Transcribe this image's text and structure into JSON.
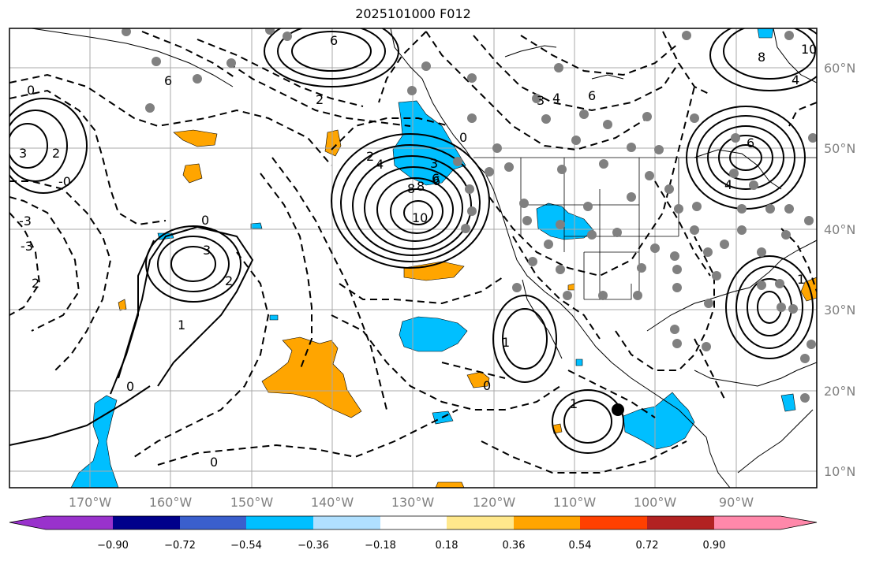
{
  "title": "2025101000 F012",
  "lat_labels": [
    "60°N",
    "50°N",
    "40°N",
    "30°N",
    "20°N",
    "10°N"
  ],
  "lon_labels": [
    "170°W",
    "160°W",
    "150°W",
    "140°W",
    "130°W",
    "120°W",
    "110°W",
    "100°W",
    "90°W"
  ],
  "colorbar": {
    "ticks": [
      "−0.90",
      "−0.72",
      "−0.54",
      "−0.36",
      "−0.18",
      "0.18",
      "0.36",
      "0.54",
      "0.72",
      "0.90"
    ],
    "colors": [
      "#9932cc",
      "#00008b",
      "#3a5fcd",
      "#00bfff",
      "#b0e0ff",
      "#ffffff",
      "#ffe88c",
      "#ffa500",
      "#ff4000",
      "#b22222",
      "#ff88aa"
    ]
  },
  "contour_labels": [
    "6",
    "8",
    "6",
    "4",
    "2",
    "0",
    "3",
    "2",
    "-3",
    "-0",
    "2",
    "0",
    "3",
    "2",
    "1",
    "0",
    "3",
    "6",
    "8",
    "10",
    "0",
    "2",
    "6",
    "3",
    "4",
    "6",
    "8",
    "10",
    "4",
    "6",
    "4",
    "1",
    "0",
    "1",
    "1",
    "0",
    "-3"
  ]
}
